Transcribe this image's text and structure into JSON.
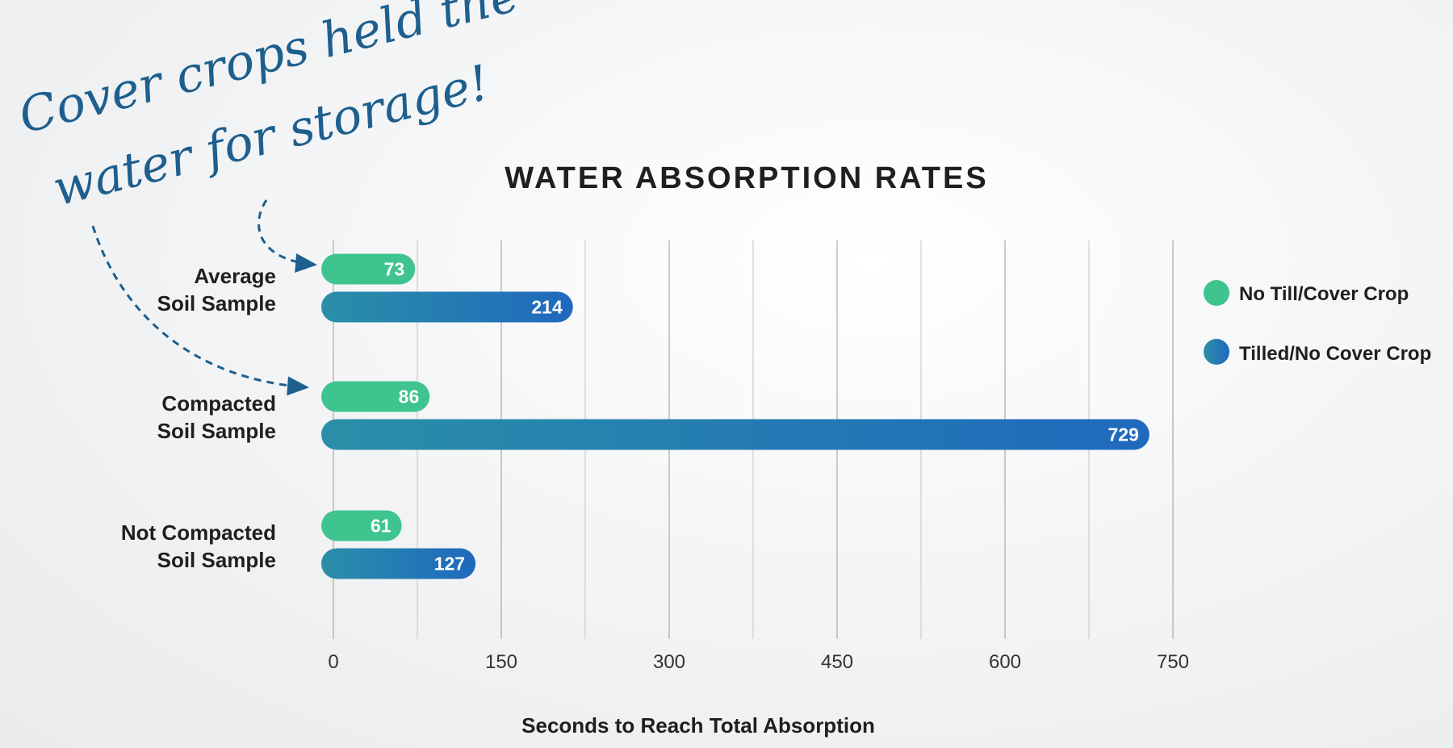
{
  "annotation": {
    "line1": "Cover crops held the",
    "line2": "water for storage!"
  },
  "colors": {
    "no_till": "#3fc48f",
    "tilled_start": "#2a8fa8",
    "tilled_end": "#1f69bd",
    "annotation": "#1d5f8e",
    "text": "#1f1f1f"
  },
  "chart_data": {
    "type": "bar",
    "orientation": "horizontal",
    "title": "WATER ABSORPTION RATES",
    "xlabel": "Seconds to Reach Total Absorption",
    "ylabel": "",
    "xlim": [
      0,
      750
    ],
    "xticks": [
      0,
      150,
      300,
      450,
      600,
      750
    ],
    "grid": true,
    "legend_position": "right",
    "categories": [
      [
        "Average",
        "Soil Sample"
      ],
      [
        "Compacted",
        "Soil Sample"
      ],
      [
        "Not Compacted",
        "Soil Sample"
      ]
    ],
    "series": [
      {
        "name": "No Till/Cover Crop",
        "values": [
          73,
          86,
          61
        ]
      },
      {
        "name": "Tilled/No Cover Crop",
        "values": [
          214,
          729,
          127
        ]
      }
    ]
  }
}
